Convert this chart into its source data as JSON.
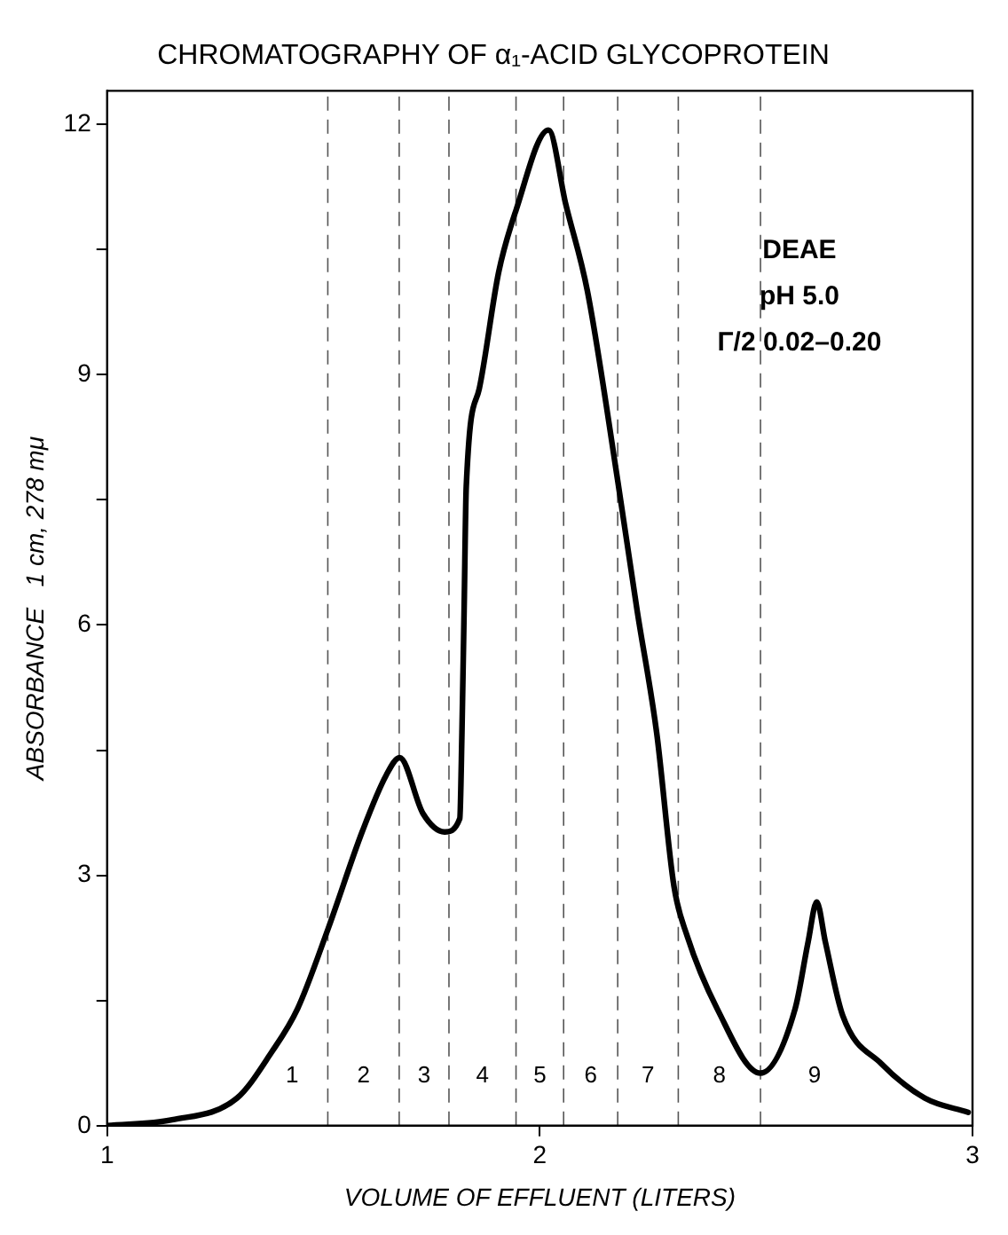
{
  "chart_data": {
    "type": "line",
    "title": "CHROMATOGRAPHY OF α₁-ACID GLYCOPROTEIN",
    "xlabel": "VOLUME OF EFFLUENT (LITERS)",
    "ylabel": "ABSORBANCE   1 cm, 278 mμ",
    "series": [
      {
        "color": "#000000",
        "x": [
          1,
          1.15,
          1.3,
          1.38,
          1.44,
          1.51,
          1.59,
          1.645,
          1.676,
          1.73,
          1.78,
          1.815,
          1.82,
          1.825,
          1.83,
          1.86,
          1.905,
          1.945,
          2.02,
          2.06,
          2.11,
          2.18,
          2.225,
          2.27,
          2.31,
          2.34,
          2.41,
          2.51,
          2.59,
          2.62,
          2.64,
          2.66,
          2.7,
          2.79,
          2.89,
          2.99
        ],
        "values": [
          0,
          0.07,
          0.33,
          0.88,
          1.4,
          2.35,
          3.53,
          4.2,
          4.41,
          3.74,
          3.52,
          3.68,
          4.71,
          6.17,
          7.66,
          8.83,
          10.23,
          10.97,
          11.93,
          11.04,
          10.0,
          7.73,
          6.17,
          4.71,
          2.87,
          2.28,
          1.4,
          0.63,
          1.4,
          2.2,
          2.68,
          2.2,
          1.32,
          0.74,
          0.33,
          0.16
        ]
      }
    ],
    "xlim": [
      1,
      3
    ],
    "xticks": [
      1,
      2,
      3
    ],
    "ylim": [
      0,
      12.4
    ],
    "yticks": [
      0,
      {
        "value": 1.5,
        "label": null
      },
      3,
      {
        "value": 4.5,
        "label": null
      },
      6,
      {
        "value": 7.5,
        "label": null
      },
      9,
      {
        "value": 10.5,
        "label": null
      },
      12
    ],
    "grid": false,
    "legend": false,
    "marker": "none",
    "line_style": "solid",
    "ref_lines": [
      {
        "axis": "x",
        "value": 1.51
      },
      {
        "axis": "x",
        "value": 1.675
      },
      {
        "axis": "x",
        "value": 1.79
      },
      {
        "axis": "x",
        "value": 1.945
      },
      {
        "axis": "x",
        "value": 2.055
      },
      {
        "axis": "x",
        "value": 2.18
      },
      {
        "axis": "x",
        "value": 2.32
      },
      {
        "axis": "x",
        "value": 2.51
      }
    ],
    "annotations": [
      "DEAE",
      "pH 5.0",
      "Γ/2 0.02–0.20",
      "1",
      "2",
      "3",
      "4",
      "5",
      "6",
      "7",
      "8",
      "9"
    ]
  }
}
